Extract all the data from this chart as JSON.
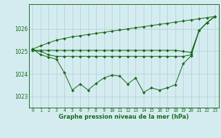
{
  "title": "Graphe pression niveau de la mer (hPa)",
  "bg_color": "#d4ecf0",
  "grid_color": "#b0cdd4",
  "line_color": "#1a6b1a",
  "xlim": [
    -0.5,
    23.5
  ],
  "ylim": [
    1022.5,
    1027.1
  ],
  "yticks": [
    1023,
    1024,
    1025,
    1026
  ],
  "xticks": [
    0,
    1,
    2,
    3,
    4,
    5,
    6,
    7,
    8,
    9,
    10,
    11,
    12,
    13,
    14,
    15,
    16,
    17,
    18,
    19,
    20,
    21,
    22,
    23
  ],
  "series_main": [
    1025.1,
    1024.85,
    1024.75,
    1024.65,
    1024.05,
    1023.28,
    1023.55,
    1023.28,
    1023.58,
    1023.82,
    1023.95,
    1023.9,
    1023.55,
    1023.82,
    1023.18,
    1023.38,
    1023.28,
    1023.38,
    1023.52,
    1024.45,
    1024.8,
    1025.92,
    1026.28,
    1026.55
  ],
  "series_flat": [
    1025.05,
    1025.0,
    1024.85,
    1024.78,
    1024.78,
    1024.78,
    1024.78,
    1024.78,
    1024.78,
    1024.78,
    1024.78,
    1024.78,
    1024.78,
    1024.78,
    1024.78,
    1024.78,
    1024.78,
    1024.78,
    1024.78,
    1024.78,
    1024.85,
    1025.92,
    1026.28,
    1026.55
  ],
  "series_horiz": [
    1025.05,
    1025.05,
    1025.05,
    1025.05,
    1025.05,
    1025.05,
    1025.05,
    1025.05,
    1025.05,
    1025.05,
    1025.05,
    1025.05,
    1025.05,
    1025.05,
    1025.05,
    1025.05,
    1025.05,
    1025.05,
    1025.05,
    1025.0,
    1024.95,
    1025.92,
    1026.28,
    1026.55
  ],
  "series_rising": [
    1025.1,
    1025.25,
    1025.38,
    1025.5,
    1025.58,
    1025.65,
    1025.7,
    1025.75,
    1025.8,
    1025.85,
    1025.9,
    1025.95,
    1026.0,
    1026.05,
    1026.1,
    1026.15,
    1026.2,
    1026.25,
    1026.3,
    1026.35,
    1026.4,
    1026.45,
    1026.5,
    1026.55
  ]
}
